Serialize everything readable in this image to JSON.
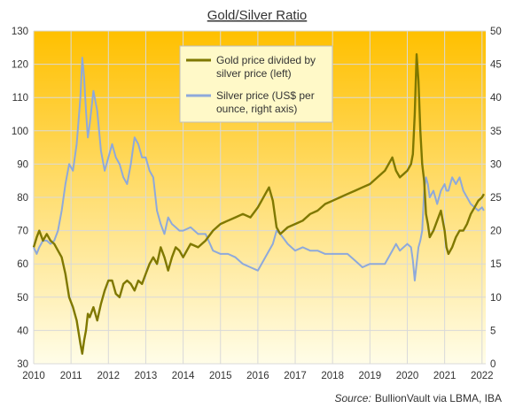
{
  "chart_data": {
    "type": "line",
    "title": "Gold/Silver Ratio",
    "x_ticks": [
      "2010",
      "2011",
      "2012",
      "2013",
      "2014",
      "2015",
      "2016",
      "2017",
      "2018",
      "2019",
      "2020",
      "2021",
      "2022"
    ],
    "xlim": [
      2010,
      2022.1
    ],
    "y_left": {
      "ticks": [
        "30",
        "40",
        "50",
        "60",
        "70",
        "80",
        "90",
        "100",
        "110",
        "120",
        "130"
      ],
      "ylim": [
        30,
        130
      ]
    },
    "y_right": {
      "ticks": [
        "0",
        "5",
        "10",
        "15",
        "20",
        "25",
        "30",
        "35",
        "40",
        "45",
        "50"
      ],
      "ylim": [
        0,
        50
      ]
    },
    "grid": true,
    "legend_position": "top-center",
    "background": {
      "top": "#FFC000",
      "bottom": "#FFFDE8"
    },
    "series": [
      {
        "name": "Gold price divided by silver price (left)",
        "axis": "left",
        "color": "#7F7800",
        "x": [
          2010.0,
          2010.08,
          2010.15,
          2010.25,
          2010.35,
          2010.45,
          2010.55,
          2010.65,
          2010.75,
          2010.85,
          2010.95,
          2011.05,
          2011.15,
          2011.25,
          2011.3,
          2011.35,
          2011.4,
          2011.45,
          2011.5,
          2011.6,
          2011.7,
          2011.8,
          2011.9,
          2012.0,
          2012.1,
          2012.2,
          2012.3,
          2012.4,
          2012.5,
          2012.6,
          2012.7,
          2012.8,
          2012.9,
          2013.0,
          2013.1,
          2013.2,
          2013.3,
          2013.4,
          2013.5,
          2013.6,
          2013.7,
          2013.8,
          2013.9,
          2014.0,
          2014.2,
          2014.4,
          2014.6,
          2014.8,
          2015.0,
          2015.2,
          2015.4,
          2015.6,
          2015.8,
          2016.0,
          2016.1,
          2016.2,
          2016.3,
          2016.4,
          2016.5,
          2016.6,
          2016.8,
          2017.0,
          2017.2,
          2017.4,
          2017.6,
          2017.8,
          2018.0,
          2018.2,
          2018.4,
          2018.6,
          2018.8,
          2019.0,
          2019.2,
          2019.4,
          2019.5,
          2019.6,
          2019.7,
          2019.8,
          2019.9,
          2020.0,
          2020.1,
          2020.15,
          2020.2,
          2020.25,
          2020.3,
          2020.35,
          2020.4,
          2020.45,
          2020.5,
          2020.55,
          2020.6,
          2020.7,
          2020.8,
          2020.9,
          2021.0,
          2021.05,
          2021.1,
          2021.2,
          2021.3,
          2021.4,
          2021.5,
          2021.6,
          2021.7,
          2021.8,
          2021.9,
          2022.0,
          2022.05
        ],
        "values": [
          65,
          68,
          70,
          67,
          69,
          67,
          66,
          64,
          62,
          57,
          50,
          47,
          43,
          36,
          33,
          37,
          40,
          45,
          44,
          47,
          43,
          48,
          52,
          55,
          55,
          51,
          50,
          54,
          55,
          54,
          52,
          55,
          54,
          57,
          60,
          62,
          60,
          65,
          62,
          58,
          62,
          65,
          64,
          62,
          66,
          65,
          67,
          70,
          72,
          73,
          74,
          75,
          74,
          77,
          79,
          81,
          83,
          79,
          71,
          69,
          71,
          72,
          73,
          75,
          76,
          78,
          79,
          80,
          81,
          82,
          83,
          84,
          86,
          88,
          90,
          92,
          88,
          86,
          87,
          88,
          90,
          93,
          105,
          123,
          115,
          100,
          90,
          85,
          75,
          72,
          68,
          70,
          73,
          76,
          70,
          65,
          63,
          65,
          68,
          70,
          70,
          72,
          75,
          77,
          79,
          80,
          81
        ]
      },
      {
        "name": "Silver price (US$ per ounce, right axis)",
        "axis": "right",
        "color": "#8EA9DB",
        "x": [
          2010.0,
          2010.08,
          2010.15,
          2010.25,
          2010.35,
          2010.45,
          2010.55,
          2010.65,
          2010.75,
          2010.85,
          2010.95,
          2011.05,
          2011.15,
          2011.25,
          2011.3,
          2011.35,
          2011.4,
          2011.45,
          2011.5,
          2011.6,
          2011.7,
          2011.8,
          2011.9,
          2012.0,
          2012.1,
          2012.2,
          2012.3,
          2012.4,
          2012.5,
          2012.6,
          2012.7,
          2012.8,
          2012.9,
          2013.0,
          2013.1,
          2013.2,
          2013.3,
          2013.4,
          2013.5,
          2013.6,
          2013.7,
          2013.8,
          2013.9,
          2014.0,
          2014.2,
          2014.4,
          2014.6,
          2014.8,
          2015.0,
          2015.2,
          2015.4,
          2015.6,
          2015.8,
          2016.0,
          2016.1,
          2016.2,
          2016.3,
          2016.4,
          2016.5,
          2016.6,
          2016.8,
          2017.0,
          2017.2,
          2017.4,
          2017.6,
          2017.8,
          2018.0,
          2018.2,
          2018.4,
          2018.6,
          2018.8,
          2019.0,
          2019.2,
          2019.4,
          2019.5,
          2019.6,
          2019.7,
          2019.8,
          2019.9,
          2020.0,
          2020.1,
          2020.15,
          2020.2,
          2020.25,
          2020.3,
          2020.35,
          2020.4,
          2020.45,
          2020.5,
          2020.55,
          2020.6,
          2020.7,
          2020.8,
          2020.9,
          2021.0,
          2021.05,
          2021.1,
          2021.2,
          2021.3,
          2021.4,
          2021.5,
          2021.6,
          2021.7,
          2021.8,
          2021.9,
          2022.0,
          2022.05
        ],
        "values": [
          17.5,
          16.5,
          17.5,
          18.5,
          18.5,
          18,
          18.5,
          20,
          23,
          27,
          30,
          29,
          33,
          40,
          46,
          43,
          38,
          34,
          36,
          41,
          38,
          32,
          29,
          31,
          33,
          31,
          30,
          28,
          27,
          30,
          34,
          33,
          31,
          31,
          29,
          28,
          23,
          21,
          19.5,
          22,
          21,
          20.5,
          20,
          20,
          20.5,
          19.5,
          19.5,
          17,
          16.5,
          16.5,
          16,
          15,
          14.5,
          14,
          15,
          16,
          17,
          18,
          20,
          19.5,
          18,
          17,
          17.5,
          17,
          17,
          16.5,
          16.5,
          16.5,
          16.5,
          15.5,
          14.5,
          15,
          15,
          15,
          16,
          17,
          18,
          17,
          17.5,
          18,
          17.5,
          15.5,
          12.5,
          15,
          17.5,
          18.5,
          20,
          26,
          28,
          27,
          25,
          26,
          24,
          26,
          27,
          26,
          26,
          28,
          27,
          28,
          26,
          25,
          24,
          23.5,
          23,
          23.5,
          23
        ]
      }
    ]
  },
  "source": {
    "label": "Source:",
    "text": "BullionVault via LBMA, IBA"
  }
}
